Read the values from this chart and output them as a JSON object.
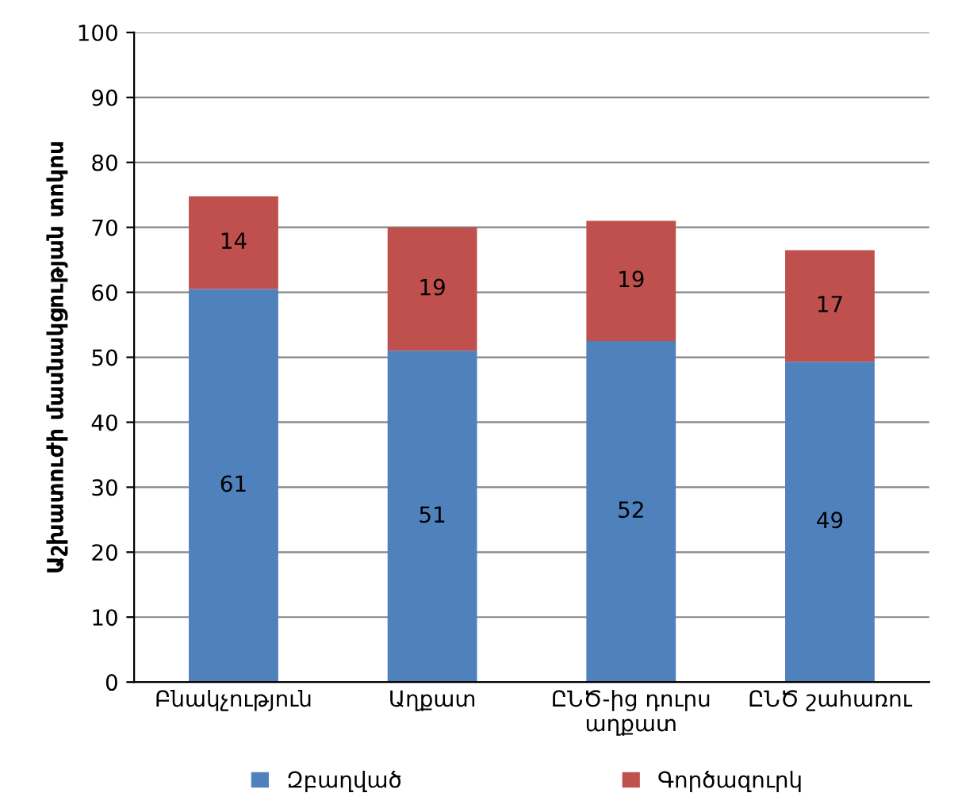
{
  "chart_data": {
    "type": "bar",
    "stacked": true,
    "ylabel": "Աշխատուժի մասնակցության տոկոս",
    "categories": [
      "Բնակչություն",
      "Աղքատ",
      "ԸՆԾ-ից դուրս աղքատ",
      "ԸՆԾ շահառու"
    ],
    "series": [
      {
        "name": "Զբաղված",
        "color": "#4f81bd",
        "values": [
          60.5,
          51,
          52.5,
          49.3
        ],
        "value_labels": [
          "61",
          "51",
          "52",
          "49"
        ]
      },
      {
        "name": "Գործազուրկ",
        "color": "#c0504d",
        "values": [
          14.3,
          19,
          18.5,
          17.2
        ],
        "value_labels": [
          "14",
          "19",
          "19",
          "17"
        ]
      }
    ],
    "ylim": [
      0,
      100
    ],
    "yticks": [
      0,
      10,
      20,
      30,
      40,
      50,
      60,
      70,
      80,
      90,
      100
    ],
    "grid": "y",
    "legend": "bottom"
  }
}
